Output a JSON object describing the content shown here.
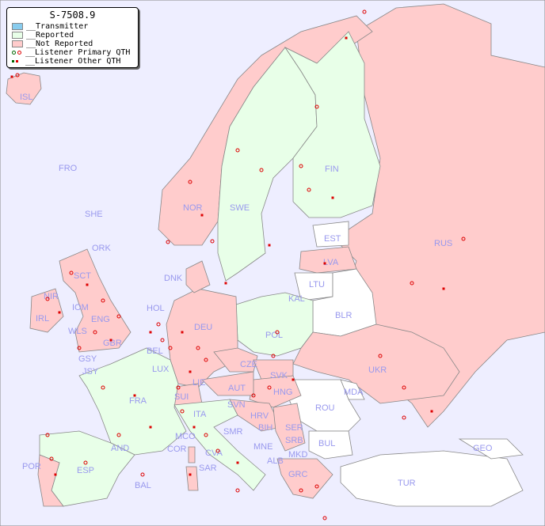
{
  "legend": {
    "title": "S-7508.9",
    "items": [
      {
        "label": "__Transmitter",
        "color": "#88ccee"
      },
      {
        "label": "__Reported",
        "color": "#e8ffe8"
      },
      {
        "label": "__Not Reported",
        "color": "#ffcccc"
      },
      {
        "label": "__Listener Primary QTH",
        "colors": [
          "#006600",
          "#dd0000"
        ]
      },
      {
        "label": "__Listener Other QTH",
        "colors": [
          "#006600",
          "#dd0000"
        ]
      }
    ]
  },
  "colors": {
    "sea": "#eeeeff",
    "reported": "#e8ffe8",
    "not_reported": "#ffcccc",
    "no_data": "#ffffff",
    "label": "#9999ee",
    "listener": "#dd0000"
  },
  "countries": {
    "ISL": "ISL",
    "FRO": "FRO",
    "SHE": "SHE",
    "ORK": "ORK",
    "NOR": "NOR",
    "SWE": "SWE",
    "FIN": "FIN",
    "RUS": "RUS",
    "EST": "EST",
    "LVA": "LVA",
    "LTU": "LTU",
    "KAL": "KAL",
    "BLR": "BLR",
    "DNK": "DNK",
    "GBR": "GBR",
    "SCT": "SCT",
    "NIR": "NIR",
    "IRL": "IRL",
    "IOM": "IOM",
    "WLS": "WLS",
    "ENG": "ENG",
    "HOL": "HOL",
    "BEL": "BEL",
    "LUX": "LUX",
    "DEU": "DEU",
    "POL": "POL",
    "CZE": "CZE",
    "SVK": "SVK",
    "UKR": "UKR",
    "MDA": "MDA",
    "ROU": "ROU",
    "HNG": "HNG",
    "AUT": "AUT",
    "SUI": "SUI",
    "LIE": "LIE",
    "FRA": "FRA",
    "GSY": "GSY",
    "JSY": "JSY",
    "SVN": "SVN",
    "HRV": "HRV",
    "BIH": "BIH",
    "SRB": "SRB",
    "ITA": "ITA",
    "MCO": "MCO",
    "COR": "COR",
    "SMR": "SMR",
    "CVA": "CVA",
    "SAR": "SAR",
    "MNE": "MNE",
    "ALB": "ALB",
    "MKD": "MKD",
    "BUL": "BUL",
    "GRC": "GRC",
    "TUR": "TUR",
    "GEO": "GEO",
    "AND": "AND",
    "ESP": "ESP",
    "POR": "POR",
    "BAL": "BAL",
    "SER": "SER"
  }
}
